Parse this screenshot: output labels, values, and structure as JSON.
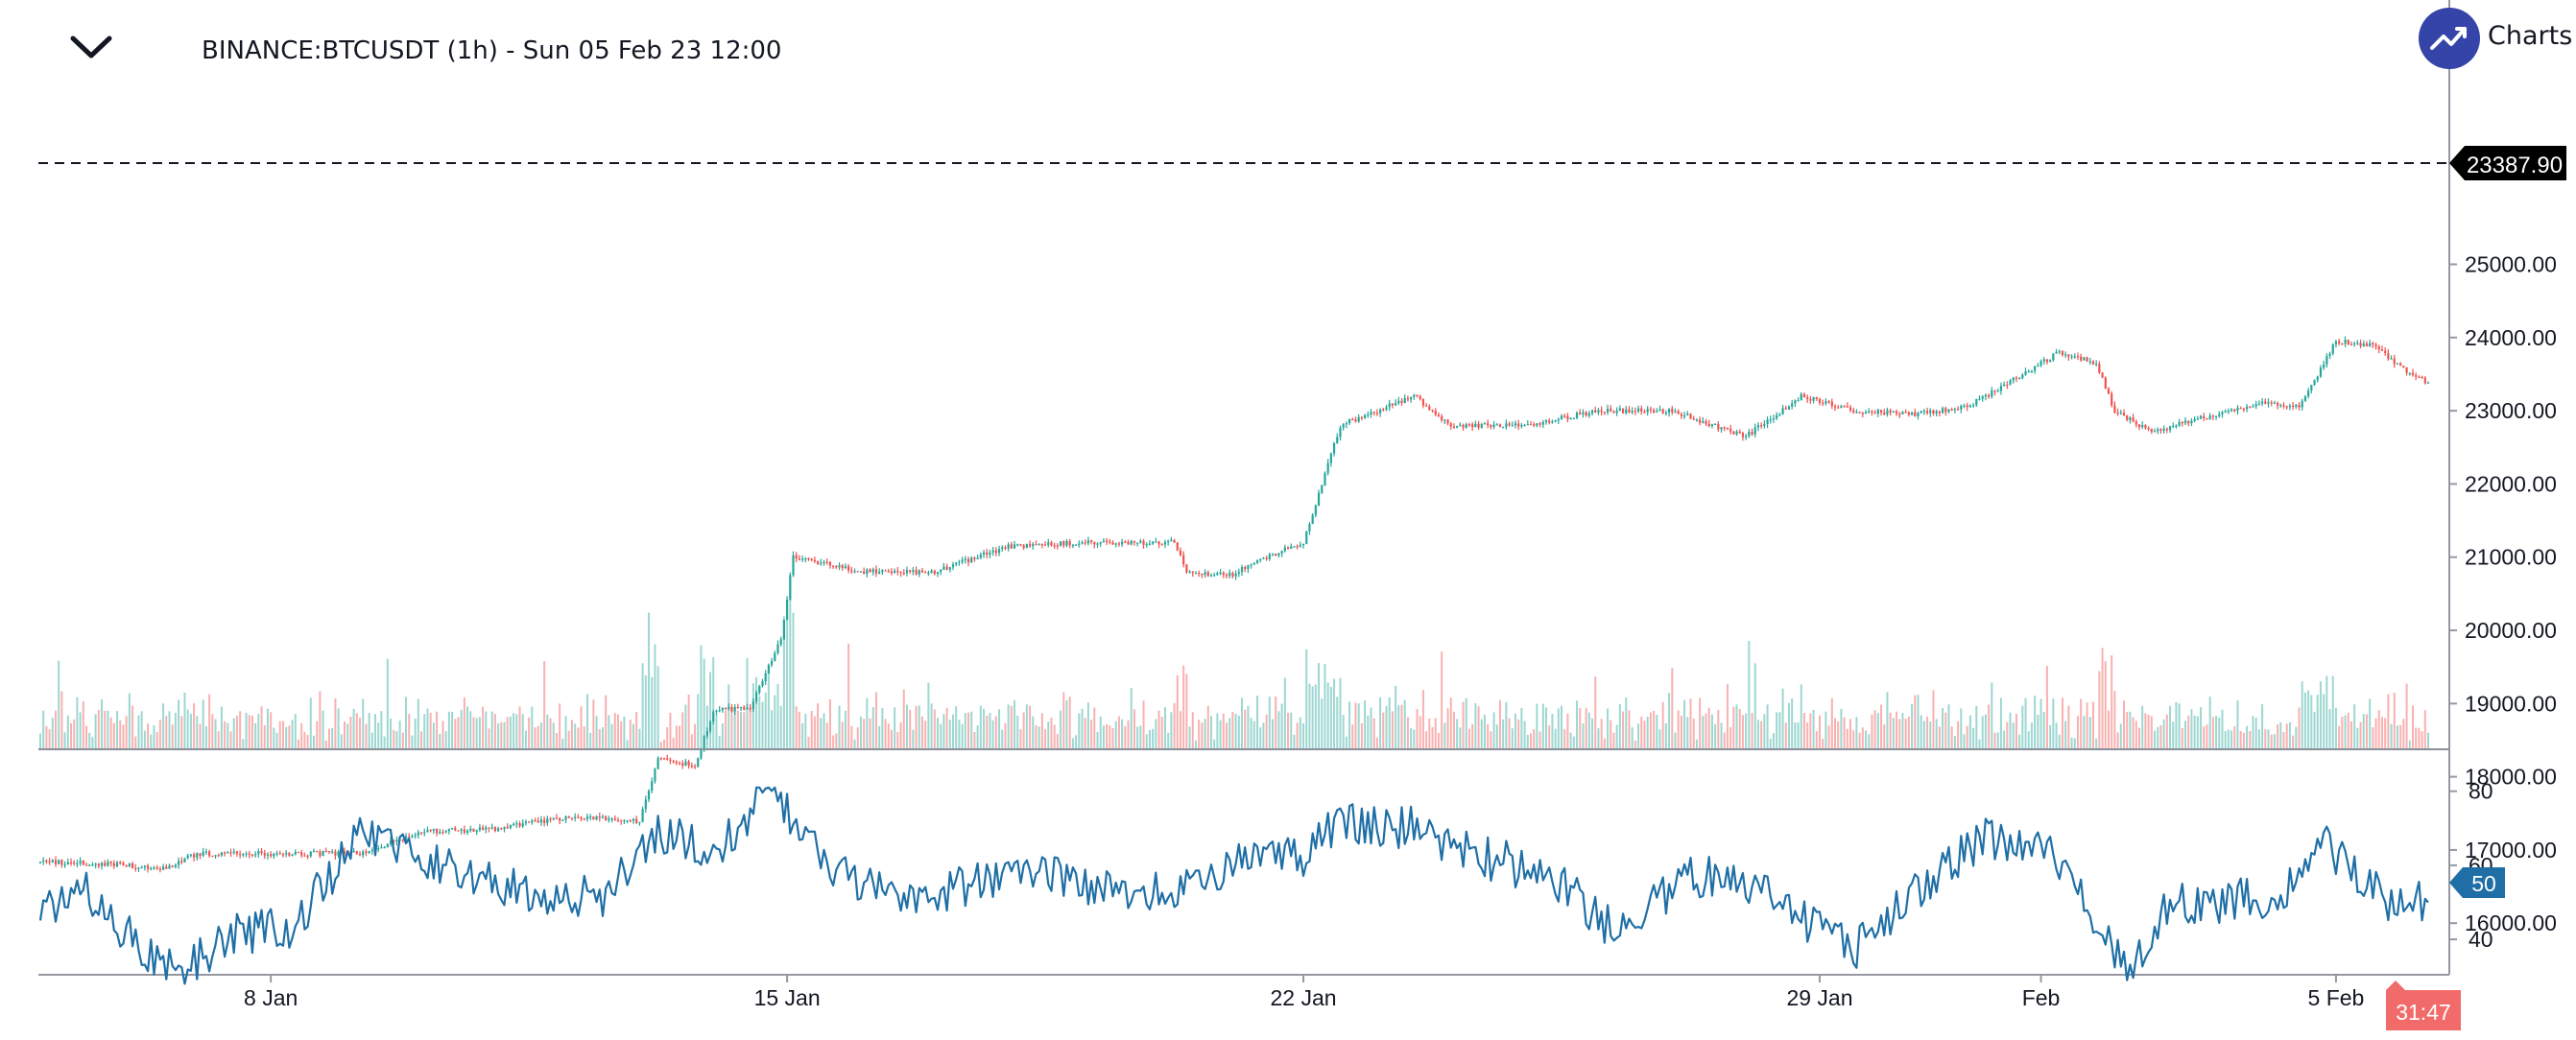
{
  "header": {
    "collapse_icon": "chevron-down-icon",
    "title": "BINANCE:BTCUSDT (1h) - Sun 05 Feb 23 12:00",
    "brand_icon": "trend-up-icon",
    "brand_text": "Charts b"
  },
  "colors": {
    "up": "#26a69a",
    "down": "#ef5350",
    "rsi": "#1f6fa6",
    "price_tag": "#000000",
    "countdown": "#f26b6b"
  },
  "price_label": "23387.90",
  "rsi_label": "50",
  "countdown": "31:47",
  "chart_data": {
    "type": "candlestick",
    "symbol": "BINANCE:BTCUSDT",
    "interval": "1h",
    "x_ticks": [
      "8 Jan",
      "15 Jan",
      "22 Jan",
      "29 Jan",
      "Feb",
      "5 Feb"
    ],
    "x_range": [
      "2023-01-04T21:00",
      "2023-02-06T06:00"
    ],
    "price_axis": {
      "ticks": [
        "16000.00",
        "17000.00",
        "18000.00",
        "19000.00",
        "20000.00",
        "21000.00",
        "22000.00",
        "23000.00",
        "24000.00",
        "25000.00"
      ],
      "range": [
        15400,
        25400
      ],
      "last_price": 23387.9
    },
    "rsi_axis": {
      "ticks": [
        "40",
        "60",
        "80"
      ],
      "range": [
        25,
        82
      ],
      "last_value": 50
    },
    "price_keypoints": [
      [
        "2023-01-04T21:00",
        16840
      ],
      [
        "2023-01-06T00:00",
        16800
      ],
      [
        "2023-01-06T12:00",
        16720
      ],
      [
        "2023-01-07T00:00",
        16950
      ],
      [
        "2023-01-08T12:00",
        16950
      ],
      [
        "2023-01-09T06:00",
        16960
      ],
      [
        "2023-01-10T00:00",
        17250
      ],
      [
        "2023-01-11T00:00",
        17280
      ],
      [
        "2023-01-12T00:00",
        17450
      ],
      [
        "2023-01-13T00:00",
        17400
      ],
      [
        "2023-01-13T06:00",
        18250
      ],
      [
        "2023-01-13T18:00",
        18150
      ],
      [
        "2023-01-14T00:00",
        18900
      ],
      [
        "2023-01-14T12:00",
        18950
      ],
      [
        "2023-01-14T22:00",
        19900
      ],
      [
        "2023-01-15T02:00",
        21000
      ],
      [
        "2023-01-16T00:00",
        20800
      ],
      [
        "2023-01-17T00:00",
        20800
      ],
      [
        "2023-01-18T00:00",
        21150
      ],
      [
        "2023-01-19T00:00",
        21200
      ],
      [
        "2023-01-20T06:00",
        21200
      ],
      [
        "2023-01-20T10:00",
        20800
      ],
      [
        "2023-01-21T00:00",
        20750
      ],
      [
        "2023-01-21T12:00",
        21000
      ],
      [
        "2023-01-22T00:00",
        21200
      ],
      [
        "2023-01-22T12:00",
        22800
      ],
      [
        "2023-01-23T12:00",
        23200
      ],
      [
        "2023-01-24T00:00",
        22800
      ],
      [
        "2023-01-25T00:00",
        22800
      ],
      [
        "2023-01-26T00:00",
        23000
      ],
      [
        "2023-01-27T00:00",
        23000
      ],
      [
        "2023-01-28T00:00",
        22650
      ],
      [
        "2023-01-28T18:00",
        23200
      ],
      [
        "2023-01-29T12:00",
        23000
      ],
      [
        "2023-01-30T06:00",
        22950
      ],
      [
        "2023-01-31T00:00",
        23050
      ],
      [
        "2023-01-31T12:00",
        23350
      ],
      [
        "2023-02-01T06:00",
        23800
      ],
      [
        "2023-02-01T18:00",
        23650
      ],
      [
        "2023-02-02T00:00",
        23000
      ],
      [
        "2023-02-02T12:00",
        22700
      ],
      [
        "2023-02-03T00:00",
        22850
      ],
      [
        "2023-02-04T00:00",
        23100
      ],
      [
        "2023-02-04T12:00",
        23050
      ],
      [
        "2023-02-05T00:00",
        23950
      ],
      [
        "2023-02-05T12:00",
        23900
      ],
      [
        "2023-02-06T00:00",
        23500
      ],
      [
        "2023-02-06T06:00",
        23387.9
      ]
    ],
    "rsi_keypoints": [
      [
        "2023-01-04T21:00",
        50
      ],
      [
        "2023-01-05T12:00",
        52
      ],
      [
        "2023-01-06T06:00",
        38
      ],
      [
        "2023-01-06T18:00",
        30
      ],
      [
        "2023-01-07T12:00",
        42
      ],
      [
        "2023-01-08T06:00",
        43
      ],
      [
        "2023-01-09T06:00",
        68
      ],
      [
        "2023-01-10T12:00",
        58
      ],
      [
        "2023-01-11T12:00",
        52
      ],
      [
        "2023-01-12T12:00",
        52
      ],
      [
        "2023-01-13T06:00",
        70
      ],
      [
        "2023-01-14T00:00",
        62
      ],
      [
        "2023-01-14T18:00",
        80
      ],
      [
        "2023-01-15T12:00",
        62
      ],
      [
        "2023-01-16T12:00",
        50
      ],
      [
        "2023-01-17T12:00",
        55
      ],
      [
        "2023-01-18T12:00",
        58
      ],
      [
        "2023-01-19T12:00",
        52
      ],
      [
        "2023-01-20T12:00",
        55
      ],
      [
        "2023-01-21T06:00",
        62
      ],
      [
        "2023-01-22T00:00",
        62
      ],
      [
        "2023-01-22T12:00",
        72
      ],
      [
        "2023-01-23T12:00",
        70
      ],
      [
        "2023-01-24T12:00",
        62
      ],
      [
        "2023-01-25T06:00",
        58
      ],
      [
        "2023-01-26T06:00",
        42
      ],
      [
        "2023-01-27T06:00",
        58
      ],
      [
        "2023-01-28T06:00",
        52
      ],
      [
        "2023-01-28T12:00",
        48
      ],
      [
        "2023-01-29T12:00",
        38
      ],
      [
        "2023-01-30T06:00",
        52
      ],
      [
        "2023-01-31T06:00",
        68
      ],
      [
        "2023-02-01T06:00",
        62
      ],
      [
        "2023-02-01T18:00",
        42
      ],
      [
        "2023-02-02T06:00",
        32
      ],
      [
        "2023-02-02T18:00",
        50
      ],
      [
        "2023-02-03T12:00",
        50
      ],
      [
        "2023-02-04T06:00",
        52
      ],
      [
        "2023-02-04T18:00",
        68
      ],
      [
        "2023-02-05T06:00",
        58
      ],
      [
        "2023-02-05T18:00",
        50
      ],
      [
        "2023-02-06T06:00",
        50
      ]
    ]
  }
}
